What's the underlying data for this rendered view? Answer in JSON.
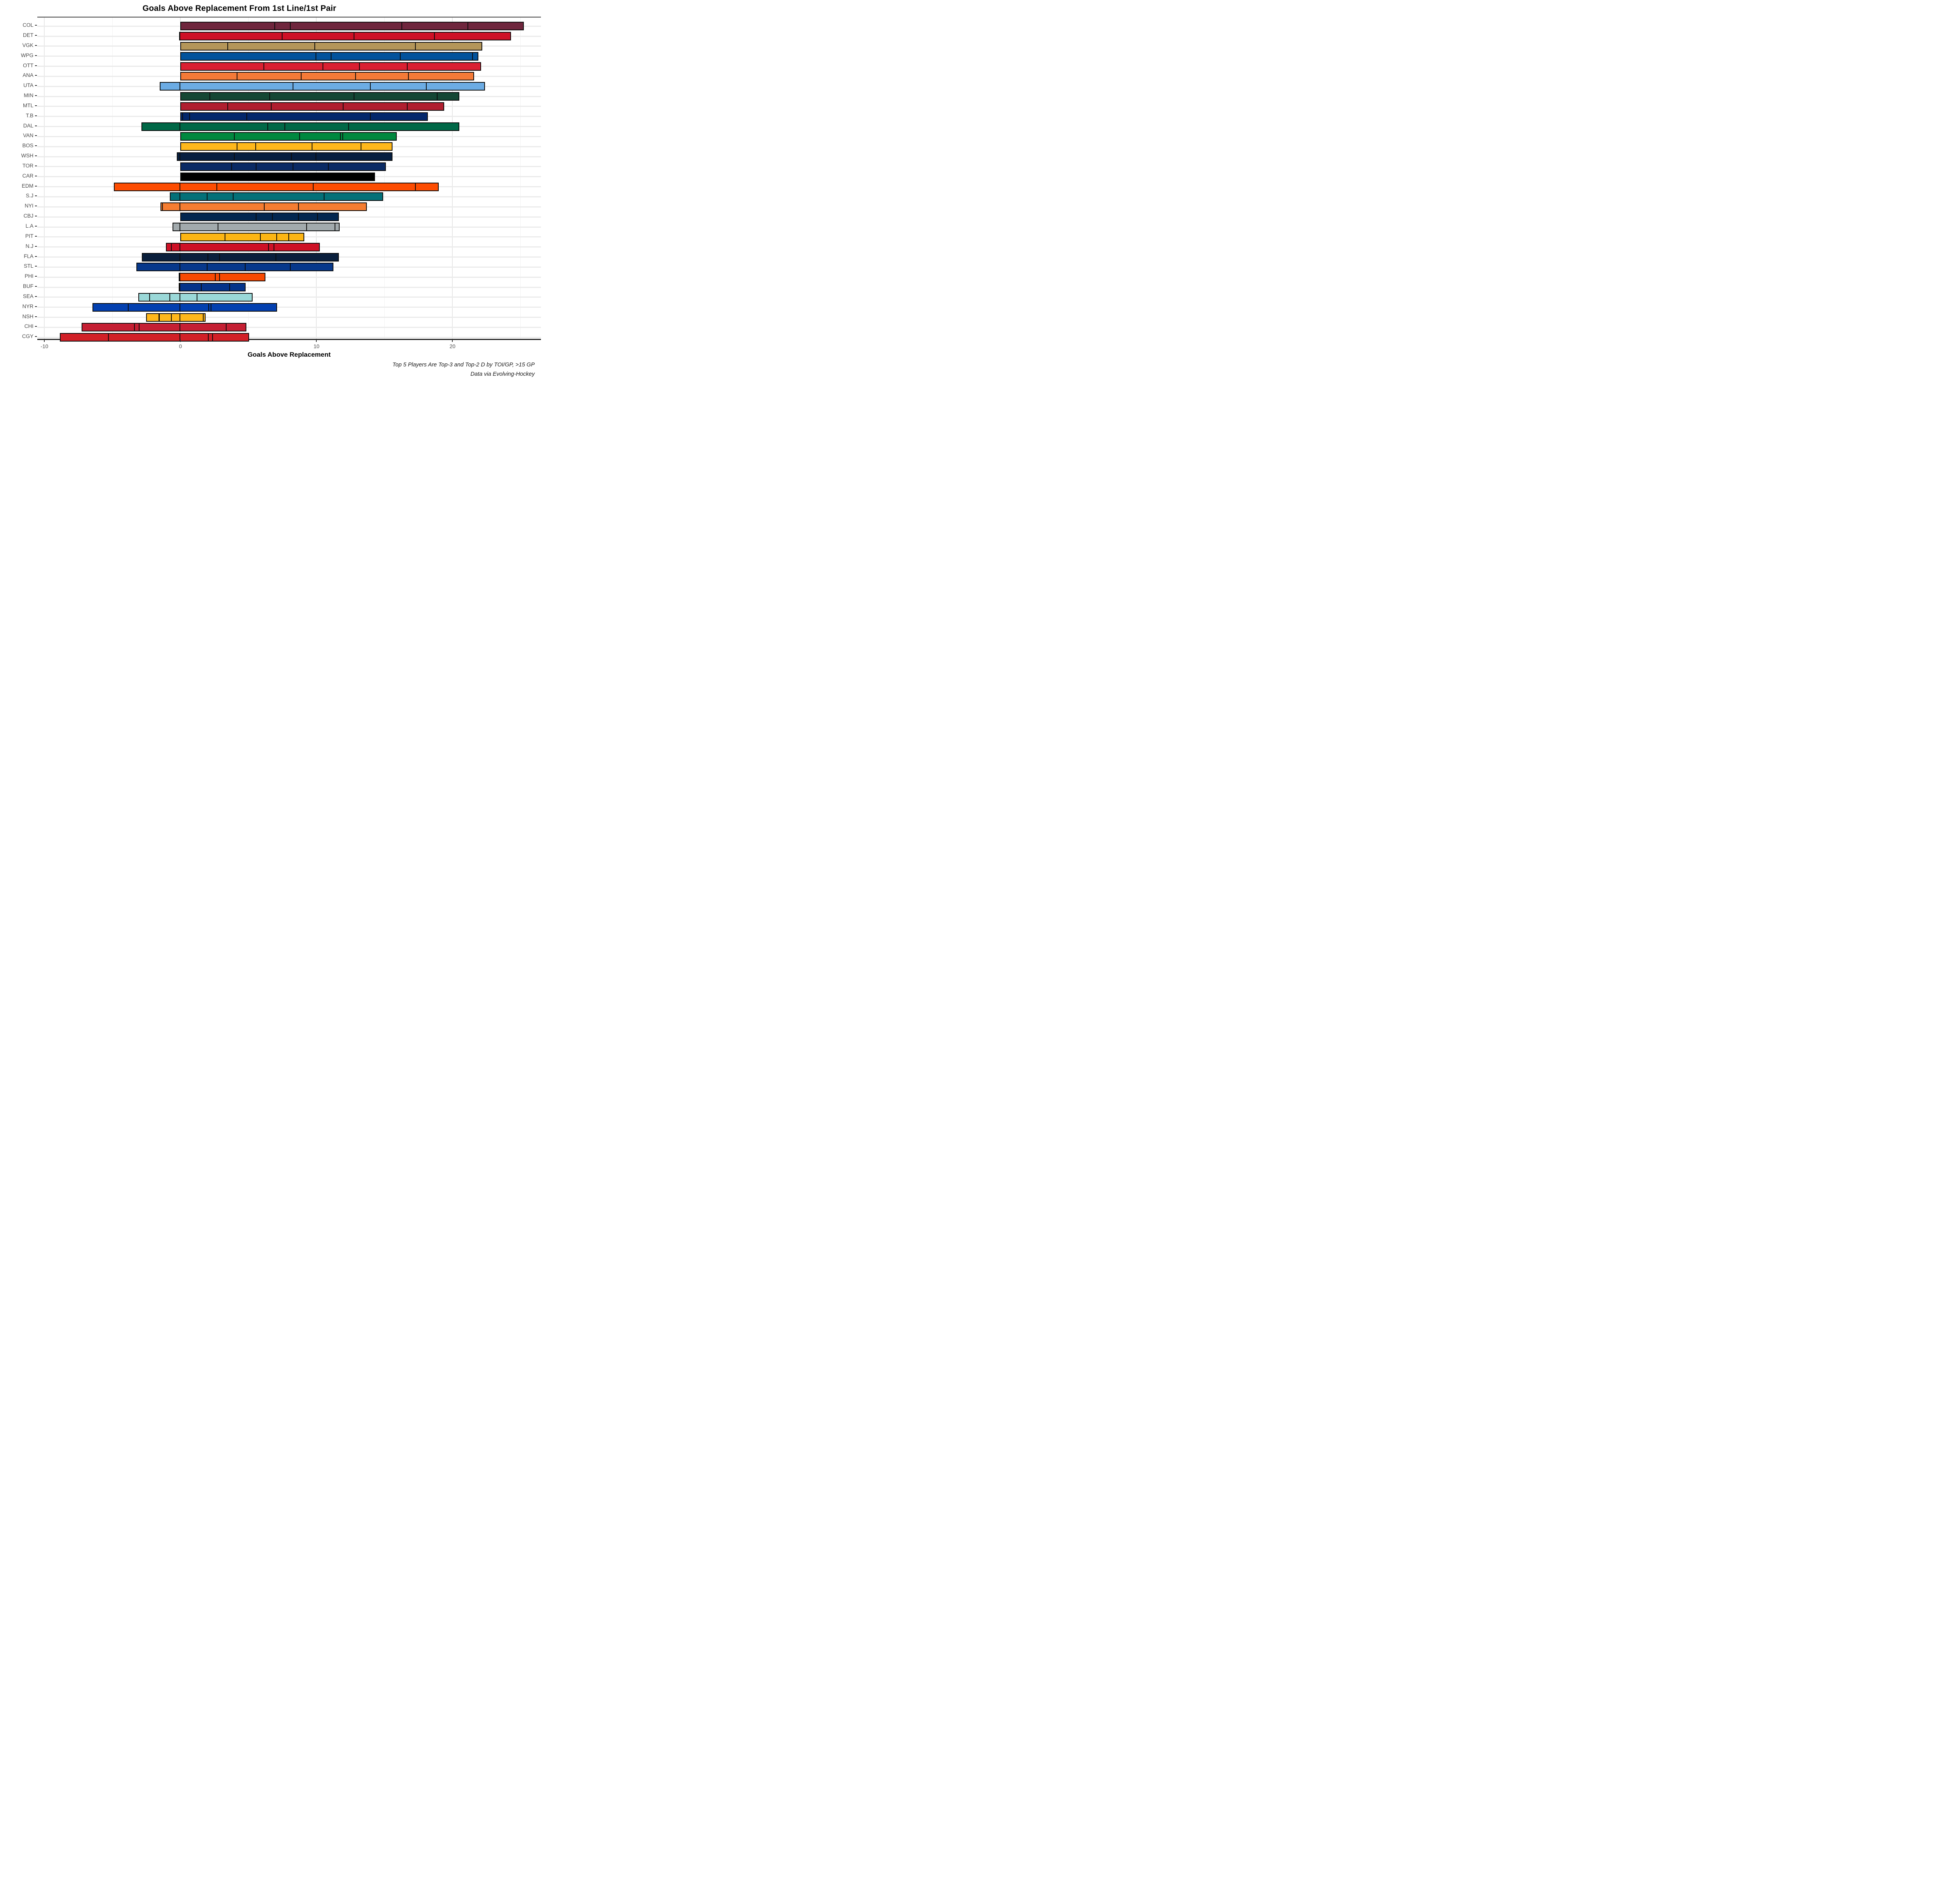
{
  "title": "Goals Above Replacement From 1st Line/1st Pair",
  "x_axis": {
    "label": "Goals Above Replacement",
    "tick_labels": [
      "-10",
      "0",
      "10",
      "20"
    ],
    "tick_values": [
      -10,
      0,
      10,
      20
    ]
  },
  "caption": {
    "line1": "Top 5 Players Are Top-3 and Top-2 D by TOI/GP, >15 GP",
    "line2": "Data via Evolving-Hockey"
  },
  "chart_data": {
    "type": "bar",
    "orientation": "horizontal",
    "stacked": true,
    "title": "Goals Above Replacement From 1st Line/1st Pair",
    "xlabel": "Goals Above Replacement",
    "xlim": [
      -10.5,
      26.5
    ],
    "grid": true,
    "note": "Each bar = top 5 players' GAR stacked; negatives stack left of zero; segments listed left-to-right",
    "teams": [
      {
        "team": "COL",
        "color": "#6F263D",
        "segments": [
          6.95,
          1.15,
          8.2,
          4.85,
          4.1
        ]
      },
      {
        "team": "DET",
        "color": "#CE1126",
        "segments": [
          -0.1,
          7.5,
          5.3,
          5.9,
          5.6
        ]
      },
      {
        "team": "VGK",
        "color": "#B49659",
        "segments": [
          3.5,
          6.4,
          7.4,
          4.9
        ]
      },
      {
        "team": "WPG",
        "color": "#02529C",
        "segments": [
          10.0,
          1.1,
          5.1,
          5.3,
          0.4
        ]
      },
      {
        "team": "OTT",
        "color": "#DA2032",
        "segments": [
          6.15,
          4.35,
          2.7,
          3.5,
          5.4
        ]
      },
      {
        "team": "ANA",
        "color": "#F47A38",
        "segments": [
          4.2,
          4.7,
          4.0,
          3.9,
          4.8
        ]
      },
      {
        "team": "UTA",
        "color": "#6CACE4",
        "segments": [
          -1.53,
          8.3,
          5.7,
          4.1,
          4.3
        ]
      },
      {
        "team": "MIN",
        "color": "#154734",
        "segments": [
          2.2,
          4.4,
          6.2,
          6.1,
          1.6
        ]
      },
      {
        "team": "MTL",
        "color": "#B01E2F",
        "segments": [
          3.5,
          3.2,
          5.3,
          4.7,
          2.7
        ]
      },
      {
        "team": "T.B",
        "color": "#03276B",
        "segments": [
          0.2,
          0.5,
          4.2,
          9.1,
          4.2
        ]
      },
      {
        "team": "DAL",
        "color": "#006847",
        "segments": [
          -2.87,
          6.45,
          1.25,
          4.7,
          8.1
        ]
      },
      {
        "team": "VAN",
        "color": "#00883F",
        "segments": [
          4.0,
          4.8,
          3.0,
          0.15,
          3.95
        ]
      },
      {
        "team": "BOS",
        "color": "#FFB81C",
        "segments": [
          4.2,
          1.35,
          4.15,
          3.6,
          2.3
        ]
      },
      {
        "team": "WSH",
        "color": "#071F40",
        "segments": [
          -0.26,
          4.0,
          4.2,
          1.8,
          5.6
        ]
      },
      {
        "team": "TOR",
        "color": "#0A2A64",
        "segments": [
          3.8,
          1.8,
          2.7,
          2.6,
          4.2
        ]
      },
      {
        "team": "CAR",
        "color": "#000000",
        "segments": [
          14.3
        ]
      },
      {
        "team": "EDM",
        "color": "#FD4D02",
        "segments": [
          -4.9,
          2.7,
          7.1,
          7.5,
          1.7
        ]
      },
      {
        "team": "S.J",
        "color": "#037078",
        "segments": [
          -0.77,
          2.0,
          1.9,
          6.7,
          4.3
        ]
      },
      {
        "team": "NYI",
        "color": "#F57D31",
        "segments": [
          -0.18,
          -1.29,
          6.2,
          2.5,
          5.0
        ]
      },
      {
        "team": "CBJ",
        "color": "#032750",
        "segments": [
          5.6,
          1.2,
          1.9,
          1.4,
          1.55
        ]
      },
      {
        "team": "L.A",
        "color": "#A2AAAD",
        "segments": [
          -0.59,
          2.8,
          6.5,
          2.1,
          0.3
        ]
      },
      {
        "team": "PIT",
        "color": "#FCB514",
        "segments": [
          3.3,
          2.6,
          1.2,
          0.9,
          1.1
        ]
      },
      {
        "team": "N.J",
        "color": "#CE1126",
        "segments": [
          -0.42,
          -0.65,
          6.5,
          0.4,
          3.35
        ]
      },
      {
        "team": "FLA",
        "color": "#0A1F3C",
        "segments": [
          -2.85,
          2.05,
          0.85,
          4.15,
          4.6
        ]
      },
      {
        "team": "STL",
        "color": "#07388B",
        "segments": [
          -3.23,
          2.0,
          2.8,
          3.3,
          3.15
        ]
      },
      {
        "team": "PHI",
        "color": "#F74902",
        "segments": [
          -0.13,
          2.6,
          0.3,
          3.35
        ]
      },
      {
        "team": "BUF",
        "color": "#04338A",
        "segments": [
          -0.12,
          1.57,
          2.08,
          1.15
        ]
      },
      {
        "team": "SEA",
        "color": "#9AD8D8",
        "segments": [
          -0.87,
          -1.48,
          -0.75,
          1.24,
          4.06
        ]
      },
      {
        "team": "NYR",
        "color": "#0340B0",
        "segments": [
          -2.67,
          -3.8,
          2.1,
          0.17,
          4.83
        ]
      },
      {
        "team": "NSH",
        "color": "#FFB81C",
        "segments": [
          -0.99,
          -0.91,
          -0.63,
          1.7,
          0.15
        ]
      },
      {
        "team": "CHI",
        "color": "#C51F33",
        "segments": [
          -3.93,
          -0.35,
          -3.0,
          3.4,
          1.45
        ]
      },
      {
        "team": "CGY",
        "color": "#D22027",
        "segments": [
          -3.6,
          -5.28,
          2.07,
          0.33,
          2.66
        ]
      }
    ],
    "minor_grid_values": [
      -5,
      5,
      15,
      25
    ]
  },
  "layout_colors": {
    "grid_major": "#e7e7e7",
    "grid_minor": "#f1f1f1",
    "row_stripe": "#ebebeb",
    "axis_line": "#333333",
    "segment_border": "#0b0b0b"
  }
}
